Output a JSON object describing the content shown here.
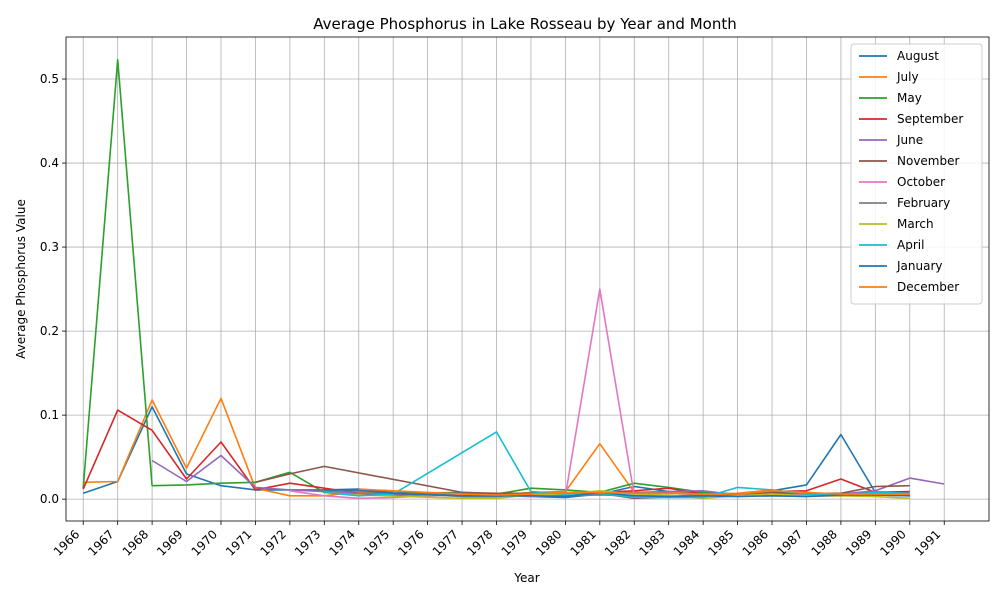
{
  "chart_data": {
    "type": "line",
    "title": "Average Phosphorus in Lake Rosseau by Year and Month",
    "xlabel": "Year",
    "ylabel": "Average Phosphorus Value",
    "xlim": [
      1965.5,
      1992.3
    ],
    "ylim": [
      -0.026,
      0.55
    ],
    "y_ticks": [
      "0.0",
      "0.1",
      "0.2",
      "0.3",
      "0.4",
      "0.5"
    ],
    "x_ticks": [
      "1966",
      "1967",
      "1968",
      "1969",
      "1970",
      "1971",
      "1972",
      "1973",
      "1974",
      "1975",
      "1976",
      "1977",
      "1978",
      "1979",
      "1980",
      "1981",
      "1982",
      "1983",
      "1984",
      "1985",
      "1986",
      "1987",
      "1988",
      "1989",
      "1990",
      "1991"
    ],
    "grid": true,
    "legend_position": "top-right",
    "series": [
      {
        "name": "August",
        "color": "#1f77b4",
        "x": [
          1966,
          1967,
          1968,
          1969,
          1970,
          1971,
          1972,
          1973,
          1974,
          1975,
          1977,
          1978,
          1979,
          1980,
          1981,
          1982,
          1983,
          1984,
          1985,
          1986,
          1987,
          1988,
          1989,
          1990
        ],
        "y": [
          0.007,
          0.021,
          0.11,
          0.03,
          0.016,
          0.011,
          0.011,
          0.011,
          0.012,
          0.008,
          0.006,
          0.005,
          0.003,
          0.002,
          0.006,
          0.015,
          0.009,
          0.007,
          0.005,
          0.01,
          0.017,
          0.077,
          0.008,
          0.007
        ]
      },
      {
        "name": "July",
        "color": "#ff7f0e",
        "x": [
          1966,
          1967,
          1968,
          1969,
          1970,
          1971,
          1972,
          1973,
          1974,
          1975,
          1977,
          1978,
          1979,
          1980,
          1981,
          1982,
          1983,
          1984,
          1985,
          1986,
          1987,
          1988,
          1989,
          1990
        ],
        "y": [
          0.02,
          0.021,
          0.118,
          0.037,
          0.12,
          0.013,
          0.004,
          0.004,
          0.009,
          0.007,
          0.006,
          0.005,
          0.008,
          0.009,
          0.066,
          0.008,
          0.008,
          0.006,
          0.007,
          0.011,
          0.006,
          0.006,
          0.009,
          0.007
        ]
      },
      {
        "name": "May",
        "color": "#2ca02c",
        "x": [
          1966,
          1967,
          1968,
          1969,
          1970,
          1971,
          1972,
          1973,
          1974,
          1975,
          1977,
          1978,
          1979,
          1980,
          1981,
          1982,
          1983,
          1984,
          1985,
          1986,
          1987,
          1988,
          1989,
          1990
        ],
        "y": [
          0.013,
          0.523,
          0.016,
          0.017,
          0.019,
          0.02,
          0.032,
          0.008,
          0.007,
          0.007,
          0.008,
          0.006,
          0.013,
          0.011,
          0.008,
          0.019,
          0.014,
          0.008,
          0.006,
          0.006,
          0.006,
          0.004,
          0.007,
          0.005
        ]
      },
      {
        "name": "September",
        "color": "#d62728",
        "x": [
          1966,
          1967,
          1968,
          1969,
          1970,
          1971,
          1972,
          1973,
          1974,
          1975,
          1977,
          1978,
          1979,
          1980,
          1981,
          1982,
          1983,
          1984,
          1985,
          1986,
          1987,
          1988,
          1989,
          1990
        ],
        "y": [
          0.012,
          0.106,
          0.082,
          0.024,
          0.068,
          0.011,
          0.019,
          0.013,
          0.007,
          0.005,
          0.006,
          0.006,
          0.005,
          0.007,
          0.008,
          0.01,
          0.013,
          0.006,
          0.006,
          0.009,
          0.01,
          0.024,
          0.008,
          0.009
        ]
      },
      {
        "name": "June",
        "color": "#9467bd",
        "x": [
          1968,
          1969,
          1970,
          1971,
          1972,
          1973,
          1974,
          1975,
          1977,
          1978,
          1979,
          1980,
          1981,
          1982,
          1983,
          1984,
          1985,
          1986,
          1987,
          1988,
          1989,
          1990,
          1991
        ],
        "y": [
          0.046,
          0.021,
          0.052,
          0.014,
          0.011,
          0.009,
          0.007,
          0.006,
          0.007,
          0.006,
          0.007,
          0.006,
          0.007,
          0.008,
          0.009,
          0.01,
          0.005,
          0.007,
          0.006,
          0.006,
          0.01,
          0.025,
          0.018
        ]
      },
      {
        "name": "November",
        "color": "#8c564b",
        "x": [
          1971,
          1972,
          1973,
          1977,
          1978,
          1980,
          1981,
          1982,
          1985,
          1986,
          1987,
          1988,
          1989,
          1990
        ],
        "y": [
          0.02,
          0.03,
          0.039,
          0.008,
          0.007,
          0.007,
          0.007,
          0.001,
          0.006,
          0.008,
          0.007,
          0.007,
          0.015,
          0.016
        ]
      },
      {
        "name": "October",
        "color": "#e377c2",
        "x": [
          1972,
          1973,
          1974,
          1975,
          1976,
          1977,
          1978,
          1979,
          1980,
          1981,
          1982,
          1983,
          1984,
          1985,
          1986,
          1987,
          1988,
          1989,
          1990
        ],
        "y": [
          0.01,
          0.004,
          0.001,
          0.002,
          0.004,
          0.005,
          0.004,
          0.003,
          0.004,
          0.25,
          0.004,
          0.004,
          0.003,
          0.004,
          0.005,
          0.004,
          0.004,
          0.005,
          0.005
        ]
      },
      {
        "name": "February",
        "color": "#7f7f7f",
        "x": [
          1973,
          1974,
          1977,
          1978,
          1979,
          1980,
          1981,
          1982,
          1983,
          1984,
          1985,
          1986,
          1987,
          1988,
          1989,
          1990
        ],
        "y": [
          0.01,
          0.01,
          0.003,
          0.003,
          0.004,
          0.004,
          0.005,
          0.004,
          0.004,
          0.005,
          0.004,
          0.004,
          0.004,
          0.004,
          0.005,
          0.004
        ]
      },
      {
        "name": "March",
        "color": "#bcbd22",
        "x": [
          1973,
          1974,
          1977,
          1978,
          1979,
          1980,
          1981,
          1982,
          1983,
          1984,
          1985,
          1986,
          1987,
          1988,
          1989,
          1990
        ],
        "y": [
          0.008,
          0.005,
          0.001,
          0.001,
          0.005,
          0.006,
          0.01,
          0.006,
          0.005,
          0.001,
          0.004,
          0.006,
          0.004,
          0.004,
          0.003,
          0.001
        ]
      },
      {
        "name": "April",
        "color": "#17becf",
        "x": [
          1973,
          1974,
          1975,
          1978,
          1979,
          1980,
          1981,
          1982,
          1983,
          1984,
          1985,
          1986,
          1987,
          1988,
          1989,
          1990
        ],
        "y": [
          0.008,
          0.004,
          0.006,
          0.08,
          0.009,
          0.006,
          0.007,
          0.002,
          0.002,
          0.002,
          0.014,
          0.011,
          0.006,
          0.005,
          0.008,
          0.007
        ]
      },
      {
        "name": "January",
        "color": "#1f77b4",
        "x": [
          1973,
          1974,
          1975,
          1977,
          1978,
          1979,
          1980,
          1981,
          1982,
          1983,
          1984,
          1985,
          1986,
          1987,
          1988,
          1989,
          1990
        ],
        "y": [
          0.011,
          0.011,
          0.007,
          0.004,
          0.004,
          0.004,
          0.003,
          0.008,
          0.004,
          0.003,
          0.004,
          0.003,
          0.004,
          0.003,
          0.005,
          0.005,
          0.004
        ]
      },
      {
        "name": "December",
        "color": "#ff7f0e",
        "x": [
          1974,
          1975,
          1977,
          1978,
          1979,
          1980,
          1981,
          1982,
          1983,
          1984,
          1985,
          1986,
          1987,
          1988,
          1989,
          1990
        ],
        "y": [
          0.012,
          0.01,
          0.006,
          0.005,
          0.006,
          0.008,
          0.008,
          0.007,
          0.007,
          0.006,
          0.006,
          0.01,
          0.008,
          0.006,
          0.006,
          0.006
        ]
      }
    ]
  }
}
